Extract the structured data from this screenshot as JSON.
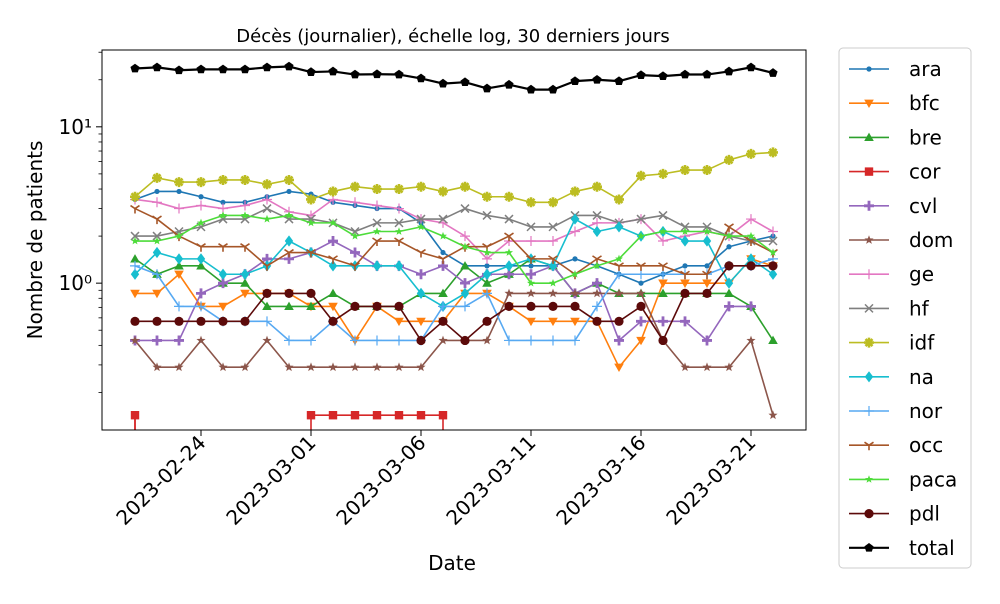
{
  "chart_data": {
    "type": "line",
    "title": "Décès (journalier), échelle log, 30 derniers jours",
    "xlabel": "Date",
    "ylabel": "Nombre de patients",
    "yscale": "log",
    "ylim": [
      0.115,
      31
    ],
    "xlim": [
      "2023-02-19T12:00",
      "2023-03-23T12:00"
    ],
    "x": [
      "2023-02-21",
      "2023-02-22",
      "2023-02-23",
      "2023-02-24",
      "2023-02-25",
      "2023-02-26",
      "2023-02-27",
      "2023-02-28",
      "2023-03-01",
      "2023-03-02",
      "2023-03-03",
      "2023-03-04",
      "2023-03-05",
      "2023-03-06",
      "2023-03-07",
      "2023-03-08",
      "2023-03-09",
      "2023-03-10",
      "2023-03-11",
      "2023-03-12",
      "2023-03-13",
      "2023-03-14",
      "2023-03-15",
      "2023-03-16",
      "2023-03-17",
      "2023-03-18",
      "2023-03-19",
      "2023-03-20",
      "2023-03-21",
      "2023-03-22",
      "2023-03-23"
    ],
    "x_ticks": [
      "2023-02-24",
      "2023-03-01",
      "2023-03-06",
      "2023-03-11",
      "2023-03-16",
      "2023-03-21"
    ],
    "y_ticks": [
      {
        "value": 1,
        "label": "10⁰"
      },
      {
        "value": 10,
        "label": "10¹"
      }
    ],
    "legend_position": "outside-right",
    "grid": false,
    "series": [
      {
        "name": "ara",
        "color": "#1f77b4",
        "marker": "point",
        "values": [
          3.43,
          3.86,
          3.86,
          3.57,
          3.29,
          3.29,
          3.57,
          3.86,
          3.71,
          3.29,
          3.14,
          3.0,
          3.0,
          2.43,
          1.57,
          1.29,
          1.29,
          1.29,
          1.29,
          1.29,
          1.43,
          1.29,
          1.14,
          1.0,
          1.14,
          1.29,
          1.29,
          1.71,
          1.86,
          2.0,
          null
        ]
      },
      {
        "name": "bfc",
        "color": "#ff7f0e",
        "marker": "triangle-down",
        "values": [
          0.86,
          0.86,
          1.14,
          0.71,
          0.71,
          0.86,
          0.86,
          0.86,
          0.71,
          0.71,
          0.43,
          0.71,
          0.57,
          0.57,
          0.57,
          0.86,
          0.86,
          0.71,
          0.57,
          0.57,
          0.57,
          0.57,
          0.29,
          0.43,
          1.0,
          1.0,
          1.0,
          1.0,
          1.43,
          1.29,
          null
        ]
      },
      {
        "name": "bre",
        "color": "#2ca02c",
        "marker": "triangle-up",
        "values": [
          1.43,
          1.14,
          1.29,
          1.29,
          1.0,
          1.0,
          0.71,
          0.71,
          0.71,
          0.86,
          0.71,
          0.71,
          0.71,
          0.86,
          0.86,
          1.29,
          1.0,
          1.14,
          1.43,
          1.29,
          0.86,
          1.0,
          0.86,
          0.86,
          0.86,
          0.86,
          0.86,
          0.86,
          0.71,
          0.43,
          null
        ]
      },
      {
        "name": "cor",
        "color": "#d62728",
        "marker": "square",
        "values": [
          0.143,
          null,
          null,
          null,
          null,
          null,
          null,
          null,
          0.143,
          0.143,
          0.143,
          0.143,
          0.143,
          0.143,
          0.143,
          null,
          null,
          null,
          null,
          null,
          null,
          null,
          null,
          null,
          null,
          null,
          null,
          null,
          null,
          null,
          null
        ]
      },
      {
        "name": "cvl",
        "color": "#9467bd",
        "marker": "plus-thick",
        "values": [
          0.43,
          0.43,
          0.43,
          0.86,
          1.0,
          1.14,
          1.43,
          1.43,
          1.57,
          1.86,
          1.57,
          1.29,
          1.29,
          1.14,
          1.29,
          1.0,
          1.14,
          1.14,
          1.14,
          1.29,
          0.86,
          1.0,
          0.43,
          0.57,
          0.57,
          0.57,
          0.43,
          0.71,
          0.71,
          null,
          null
        ]
      },
      {
        "name": "dom",
        "color": "#8c564b",
        "marker": "star",
        "values": [
          0.43,
          0.29,
          0.29,
          0.43,
          0.29,
          0.29,
          0.43,
          0.29,
          0.29,
          0.29,
          0.29,
          0.29,
          0.29,
          0.29,
          0.43,
          0.43,
          0.43,
          0.86,
          0.86,
          0.86,
          0.86,
          0.86,
          0.86,
          0.86,
          0.43,
          0.29,
          0.29,
          0.29,
          0.43,
          0.143,
          null
        ]
      },
      {
        "name": "ge",
        "color": "#e377c2",
        "marker": "plus-thin",
        "values": [
          3.43,
          3.29,
          3.0,
          3.14,
          3.0,
          3.14,
          3.43,
          2.86,
          2.71,
          3.43,
          3.29,
          3.14,
          3.0,
          2.57,
          2.43,
          2.0,
          1.43,
          1.86,
          1.86,
          1.86,
          2.14,
          2.43,
          2.43,
          2.57,
          1.86,
          2.0,
          2.14,
          2.0,
          2.57,
          2.14,
          null
        ]
      },
      {
        "name": "hf",
        "color": "#7f7f7f",
        "marker": "x",
        "values": [
          2.0,
          2.0,
          2.14,
          2.29,
          2.57,
          2.57,
          3.0,
          2.57,
          2.57,
          2.43,
          2.14,
          2.43,
          2.43,
          2.57,
          2.57,
          3.0,
          2.71,
          2.57,
          2.29,
          2.29,
          2.71,
          2.71,
          2.43,
          2.57,
          2.71,
          2.29,
          2.29,
          2.0,
          1.86,
          1.86,
          null
        ]
      },
      {
        "name": "idf",
        "color": "#bcbd22",
        "marker": "plus-bold",
        "values": [
          3.57,
          4.71,
          4.43,
          4.43,
          4.57,
          4.57,
          4.29,
          4.57,
          3.43,
          3.86,
          4.14,
          4.0,
          4.0,
          4.14,
          3.86,
          4.14,
          3.57,
          3.57,
          3.29,
          3.29,
          3.86,
          4.14,
          3.43,
          4.86,
          5.0,
          5.29,
          5.29,
          6.14,
          6.71,
          6.86,
          null
        ]
      },
      {
        "name": "na",
        "color": "#17becf",
        "marker": "diamond",
        "values": [
          1.14,
          1.57,
          1.43,
          1.43,
          1.14,
          1.14,
          1.29,
          1.86,
          1.57,
          1.29,
          1.29,
          1.29,
          1.29,
          0.86,
          0.71,
          0.86,
          1.14,
          1.29,
          1.43,
          1.29,
          2.57,
          2.14,
          2.29,
          2.0,
          2.14,
          1.86,
          1.86,
          1.0,
          1.43,
          1.14,
          null
        ]
      },
      {
        "name": "nor",
        "color": "#57a9f2",
        "marker": "plus-thin",
        "values": [
          1.29,
          1.14,
          0.71,
          0.71,
          0.57,
          0.57,
          0.57,
          0.43,
          0.43,
          0.57,
          0.43,
          0.43,
          0.43,
          0.43,
          0.71,
          0.71,
          0.86,
          0.43,
          0.43,
          0.43,
          0.43,
          0.71,
          1.14,
          1.14,
          1.14,
          1.14,
          1.14,
          1.29,
          1.29,
          1.43,
          null
        ]
      },
      {
        "name": "occ",
        "color": "#a65628",
        "marker": "tri-down",
        "values": [
          3.0,
          2.57,
          2.0,
          1.71,
          1.71,
          1.71,
          1.29,
          1.57,
          1.57,
          1.43,
          1.29,
          1.86,
          1.86,
          1.57,
          1.43,
          1.71,
          1.71,
          2.0,
          1.43,
          1.43,
          1.14,
          1.43,
          1.29,
          1.29,
          1.29,
          1.14,
          1.14,
          2.29,
          1.86,
          1.57,
          null
        ]
      },
      {
        "name": "paca",
        "color": "#4ddc3a",
        "marker": "star-small",
        "values": [
          1.86,
          1.86,
          2.0,
          2.43,
          2.71,
          2.71,
          2.57,
          2.71,
          2.43,
          2.43,
          2.0,
          2.14,
          2.14,
          2.29,
          2.0,
          1.71,
          1.57,
          1.57,
          1.0,
          1.0,
          1.14,
          1.29,
          1.43,
          2.0,
          2.14,
          2.14,
          2.14,
          2.0,
          2.0,
          1.57,
          null
        ]
      },
      {
        "name": "pdl",
        "color": "#5c0a0a",
        "marker": "circle",
        "values": [
          0.57,
          0.57,
          0.57,
          0.57,
          0.57,
          0.57,
          0.86,
          0.86,
          0.86,
          0.57,
          0.71,
          0.71,
          0.71,
          0.43,
          0.57,
          0.43,
          0.57,
          0.71,
          0.71,
          0.71,
          0.71,
          0.57,
          0.57,
          0.71,
          0.43,
          0.86,
          0.86,
          1.29,
          1.29,
          1.29,
          null
        ]
      },
      {
        "name": "total",
        "color": "#000000",
        "marker": "pentagon",
        "values": [
          23.6,
          24.0,
          23.0,
          23.3,
          23.3,
          23.3,
          24.0,
          24.3,
          22.4,
          22.6,
          21.6,
          21.7,
          21.6,
          20.4,
          18.9,
          19.3,
          17.6,
          18.6,
          17.3,
          17.3,
          19.6,
          20.0,
          19.6,
          21.4,
          21.1,
          21.6,
          21.6,
          22.6,
          24.0,
          22.1,
          null
        ]
      }
    ]
  }
}
